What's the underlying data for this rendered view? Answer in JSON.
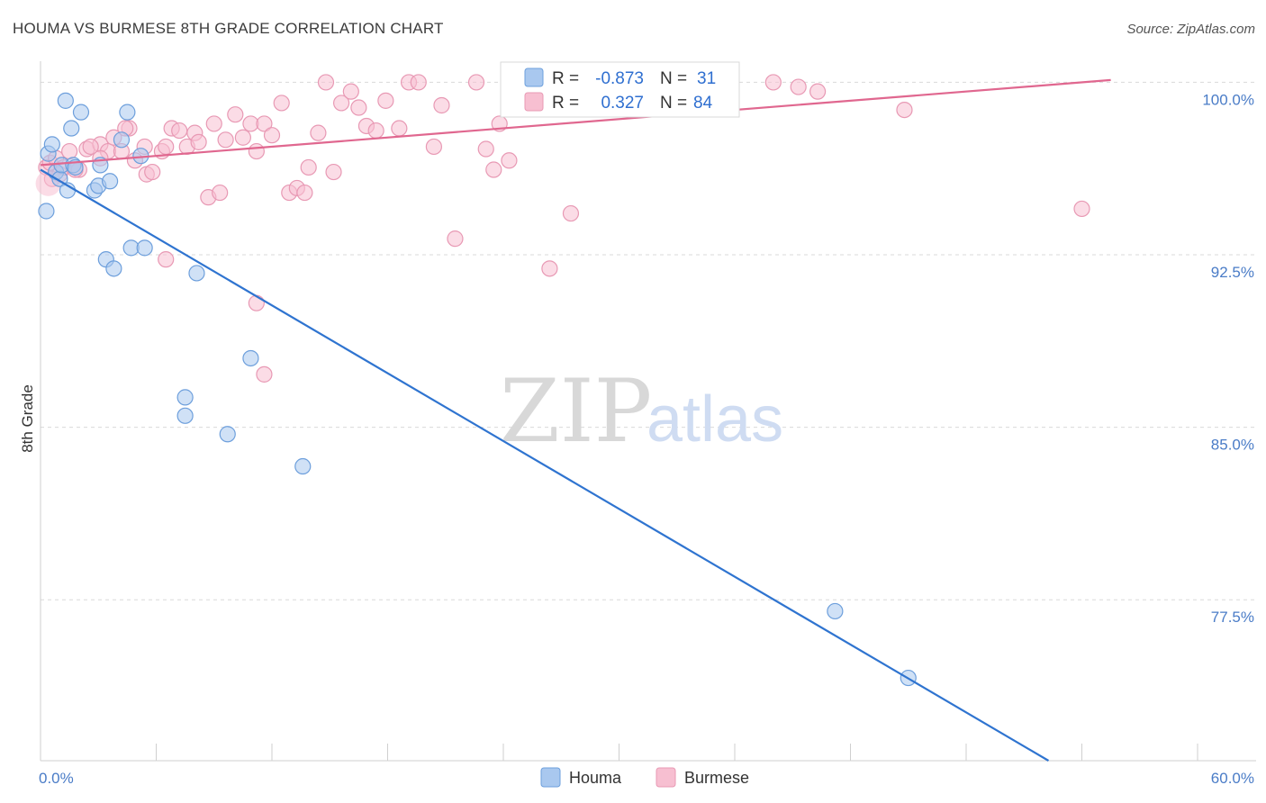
{
  "header": {
    "title": "HOUMA VS BURMESE 8TH GRADE CORRELATION CHART",
    "source": "Source: ZipAtlas.com"
  },
  "watermark": {
    "left": "ZIP",
    "right": "atlas"
  },
  "legend": {
    "r_label": "R =",
    "n_label": "N =",
    "rows": [
      {
        "r": "-0.873",
        "n": "31"
      },
      {
        "r": "0.327",
        "n": "84"
      }
    ]
  },
  "bottom_legend": [
    "Houma",
    "Burmese"
  ],
  "colors": {
    "houma_fill": "#a9c8ef",
    "houma_stroke": "#6d9fdc",
    "houma_line": "#2f74d0",
    "burmese_fill": "#f7bfd1",
    "burmese_stroke": "#e899b4",
    "burmese_line": "#e0678f",
    "value_text": "#2f6fd0",
    "grid": "#d9d9d9"
  },
  "chart_data": {
    "type": "scatter",
    "title": "HOUMA VS BURMESE 8TH GRADE CORRELATION CHART",
    "xlabel": "",
    "ylabel": "8th Grade",
    "xlim": [
      0,
      60
    ],
    "ylim": [
      70.5,
      100.8
    ],
    "x_tick_labels": [
      {
        "value": 0,
        "label": "0.0%"
      },
      {
        "value": 60,
        "label": "60.0%"
      }
    ],
    "y_ticks": [
      {
        "value": 100,
        "label": "100.0%"
      },
      {
        "value": 92.5,
        "label": "92.5%"
      },
      {
        "value": 85,
        "label": "85.0%"
      },
      {
        "value": 77.5,
        "label": "77.5%"
      }
    ],
    "grid": true,
    "legend_position": "top-center",
    "series": [
      {
        "name": "Houma",
        "R": -0.873,
        "N": 31,
        "trend": {
          "x": [
            0,
            60
          ],
          "y": [
            96.2,
            66.7
          ]
        },
        "points": [
          [
            0.3,
            94.4
          ],
          [
            0.4,
            96.9
          ],
          [
            0.6,
            97.3
          ],
          [
            0.8,
            96.1
          ],
          [
            1.0,
            95.8
          ],
          [
            1.1,
            96.4
          ],
          [
            1.3,
            99.2
          ],
          [
            1.4,
            95.3
          ],
          [
            1.6,
            98.0
          ],
          [
            1.7,
            96.4
          ],
          [
            1.8,
            96.3
          ],
          [
            2.1,
            98.7
          ],
          [
            2.8,
            95.3
          ],
          [
            3.0,
            95.5
          ],
          [
            3.1,
            96.4
          ],
          [
            3.6,
            95.7
          ],
          [
            4.2,
            97.5
          ],
          [
            4.5,
            98.7
          ],
          [
            3.4,
            92.3
          ],
          [
            3.8,
            91.9
          ],
          [
            4.7,
            92.8
          ],
          [
            5.2,
            96.8
          ],
          [
            5.4,
            92.8
          ],
          [
            7.5,
            85.5
          ],
          [
            7.5,
            86.3
          ],
          [
            8.1,
            91.7
          ],
          [
            9.7,
            84.7
          ],
          [
            10.9,
            88.0
          ],
          [
            13.6,
            83.3
          ],
          [
            41.2,
            77.0
          ],
          [
            45.0,
            74.1
          ]
        ]
      },
      {
        "name": "Burmese",
        "R": 0.327,
        "N": 84,
        "trend": {
          "x": [
            0,
            55.5
          ],
          "y": [
            96.4,
            100.1
          ]
        },
        "points": [
          [
            0.3,
            96.3
          ],
          [
            0.5,
            96.5
          ],
          [
            0.6,
            95.8
          ],
          [
            0.8,
            96.7
          ],
          [
            1.0,
            96.0
          ],
          [
            1.2,
            96.3
          ],
          [
            1.5,
            97.0
          ],
          [
            2.0,
            96.2
          ],
          [
            2.4,
            97.1
          ],
          [
            3.1,
            97.3
          ],
          [
            3.5,
            97.0
          ],
          [
            3.8,
            97.6
          ],
          [
            4.2,
            97.0
          ],
          [
            4.6,
            98.0
          ],
          [
            4.9,
            96.6
          ],
          [
            5.4,
            97.2
          ],
          [
            5.5,
            96.0
          ],
          [
            5.8,
            96.1
          ],
          [
            6.3,
            97.0
          ],
          [
            6.5,
            97.2
          ],
          [
            6.8,
            98.0
          ],
          [
            7.2,
            97.9
          ],
          [
            7.6,
            97.2
          ],
          [
            8.0,
            97.8
          ],
          [
            8.2,
            97.4
          ],
          [
            8.7,
            95.0
          ],
          [
            9.0,
            98.2
          ],
          [
            9.3,
            95.2
          ],
          [
            9.6,
            97.5
          ],
          [
            10.1,
            98.6
          ],
          [
            10.5,
            97.6
          ],
          [
            10.9,
            98.2
          ],
          [
            11.2,
            97.0
          ],
          [
            11.6,
            98.2
          ],
          [
            12.0,
            97.7
          ],
          [
            12.5,
            99.1
          ],
          [
            12.9,
            95.2
          ],
          [
            13.3,
            95.4
          ],
          [
            13.7,
            95.2
          ],
          [
            13.9,
            96.3
          ],
          [
            14.4,
            97.8
          ],
          [
            14.8,
            100.0
          ],
          [
            15.2,
            96.1
          ],
          [
            15.6,
            99.1
          ],
          [
            16.1,
            99.6
          ],
          [
            16.5,
            98.9
          ],
          [
            16.9,
            98.1
          ],
          [
            17.4,
            97.9
          ],
          [
            17.9,
            99.2
          ],
          [
            18.6,
            98.0
          ],
          [
            19.1,
            100.0
          ],
          [
            19.6,
            100.0
          ],
          [
            20.4,
            97.2
          ],
          [
            20.8,
            99.0
          ],
          [
            21.5,
            93.2
          ],
          [
            22.6,
            100.0
          ],
          [
            23.1,
            97.1
          ],
          [
            23.5,
            96.2
          ],
          [
            23.8,
            98.2
          ],
          [
            24.3,
            96.6
          ],
          [
            24.8,
            99.1
          ],
          [
            25.6,
            99.1
          ],
          [
            26.4,
            91.9
          ],
          [
            26.8,
            100.0
          ],
          [
            27.5,
            94.3
          ],
          [
            28.8,
            99.1
          ],
          [
            29.3,
            100.0
          ],
          [
            30.4,
            99.2
          ],
          [
            31.1,
            100.0
          ],
          [
            32.7,
            99.6
          ],
          [
            32.9,
            100.0
          ],
          [
            33.5,
            100.0
          ],
          [
            38.0,
            100.0
          ],
          [
            39.3,
            99.8
          ],
          [
            40.3,
            99.6
          ],
          [
            44.8,
            98.8
          ],
          [
            54.0,
            94.5
          ],
          [
            6.5,
            92.3
          ],
          [
            11.2,
            90.4
          ],
          [
            11.6,
            87.3
          ],
          [
            3.1,
            96.7
          ],
          [
            4.4,
            98.0
          ],
          [
            1.8,
            96.2
          ],
          [
            2.6,
            97.2
          ]
        ]
      }
    ]
  }
}
